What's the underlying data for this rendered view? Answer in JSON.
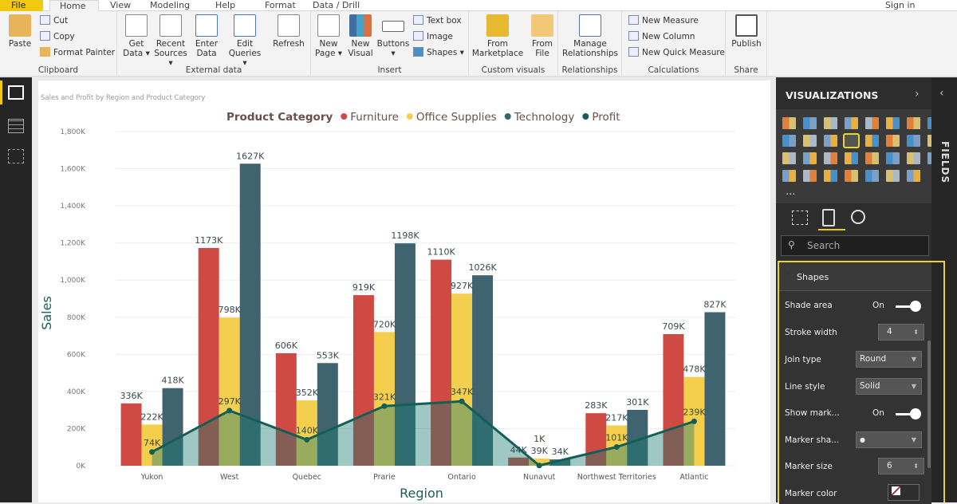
{
  "ribbon": {
    "tabs": [
      "File",
      "Home",
      "View",
      "Modeling",
      "Help",
      "Format",
      "Data / Drill"
    ],
    "sign_in": "Sign in",
    "clipboard": {
      "paste": "Paste",
      "cut": "Cut",
      "copy": "Copy",
      "format_painter": "Format Painter",
      "label": "Clipboard"
    },
    "external": {
      "get_data": "Get Data ▾",
      "recent": "Recent Sources ▾",
      "enter": "Enter Data",
      "edit": "Edit Queries ▾",
      "refresh": "Refresh",
      "label": "External data"
    },
    "insert": {
      "new_page": "New Page ▾",
      "new_visual": "New Visual",
      "buttons": "Buttons ▾",
      "text_box": "Text box",
      "image": "Image",
      "shapes": "Shapes ▾",
      "label": "Insert"
    },
    "custom": {
      "marketplace": "From Marketplace",
      "file": "From File",
      "label": "Custom visuals"
    },
    "relationships": {
      "manage": "Manage Relationships",
      "label": "Relationships"
    },
    "calculations": {
      "new_measure": "New Measure",
      "new_column": "New Column",
      "quick_measure": "New Quick Measure",
      "label": "Calculations"
    },
    "share": {
      "publish": "Publish",
      "label": "Share"
    }
  },
  "visual_title": "Sales and Profit by Region and Product Category",
  "chart_data": {
    "type": "bar",
    "legend_title": "Product Category",
    "legend_position": "top",
    "xlabel": "Region",
    "ylabel": "Sales",
    "ylim": [
      0,
      1800
    ],
    "y_ticks": [
      "0K",
      "200K",
      "400K",
      "600K",
      "800K",
      "1,000K",
      "1,200K",
      "1,400K",
      "1,600K",
      "1,800K"
    ],
    "categories": [
      "Yukon",
      "West",
      "Quebec",
      "Prarie",
      "Ontario",
      "Nunavut",
      "Northwest Territories",
      "Atlantic"
    ],
    "series": [
      {
        "name": "Furniture",
        "type": "bar",
        "color": "#cf4a43",
        "values": [
          336,
          1173,
          606,
          919,
          1110,
          44,
          283,
          709
        ],
        "labels": [
          "336K",
          "1173K",
          "606K",
          "919K",
          "1110K",
          "44K",
          "283K",
          "709K"
        ]
      },
      {
        "name": "Office Supplies",
        "type": "bar",
        "color": "#f4cf4e",
        "values": [
          222,
          798,
          352,
          720,
          927,
          39,
          217,
          478
        ],
        "labels": [
          "222K",
          "798K",
          "352K",
          "720K",
          "927K",
          "39K",
          "217K",
          "478K"
        ]
      },
      {
        "name": "Technology",
        "type": "bar",
        "color": "#3f6470",
        "values": [
          418,
          1627,
          553,
          1198,
          1026,
          34,
          301,
          827
        ],
        "labels": [
          "418K",
          "1627K",
          "553K",
          "1198K",
          "1026K",
          "34K",
          "301K",
          "827K"
        ]
      },
      {
        "name": "Profit",
        "type": "line",
        "shade_area": true,
        "color": "#135f57",
        "values": [
          74,
          297,
          140,
          321,
          347,
          1,
          101,
          239
        ],
        "labels": [
          "74K",
          "297K",
          "140K",
          "321K",
          "347K",
          "1K",
          "101K",
          "239K"
        ]
      }
    ]
  },
  "visualizations": {
    "title": "VISUALIZATIONS",
    "more": "...",
    "search_placeholder": "Search",
    "fields_label": "FIELDS"
  },
  "format": {
    "section": "Shapes",
    "shade_area": {
      "label": "Shade area",
      "value": "On"
    },
    "stroke_width": {
      "label": "Stroke width",
      "value": "4"
    },
    "join_type": {
      "label": "Join type",
      "value": "Round"
    },
    "line_style": {
      "label": "Line style",
      "value": "Solid"
    },
    "show_markers": {
      "label": "Show mark...",
      "value": "On"
    },
    "marker_shape": {
      "label": "Marker sha...",
      "value": "●"
    },
    "marker_size": {
      "label": "Marker size",
      "value": "6"
    },
    "marker_color": {
      "label": "Marker color"
    }
  }
}
